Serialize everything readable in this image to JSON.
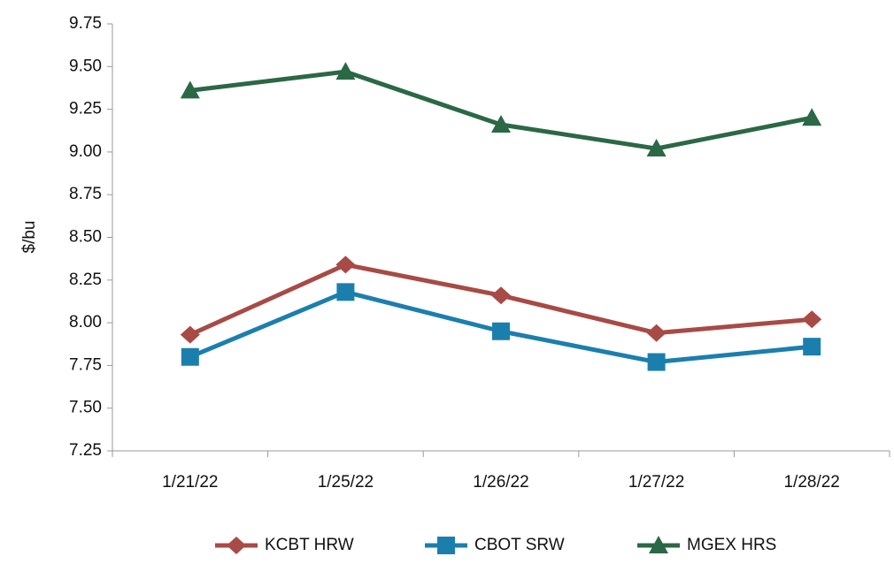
{
  "chart_data": {
    "type": "line",
    "y_label": "$/bu",
    "categories": [
      "1/21/22",
      "1/25/22",
      "1/26/22",
      "1/27/22",
      "1/28/22"
    ],
    "series": [
      {
        "name": "KCBT HRW",
        "color": "#a84a45",
        "marker": "diamond",
        "values": [
          7.93,
          8.34,
          8.16,
          7.94,
          8.02
        ]
      },
      {
        "name": "CBOT SRW",
        "color": "#1b7fae",
        "marker": "square",
        "values": [
          7.8,
          8.18,
          7.95,
          7.77,
          7.86
        ]
      },
      {
        "name": "MGEX HRS",
        "color": "#2b6845",
        "marker": "triangle",
        "values": [
          9.36,
          9.47,
          9.16,
          9.02,
          9.2
        ]
      }
    ],
    "ylim": [
      7.25,
      9.75
    ],
    "yticks": [
      7.25,
      {
        "value": 7.5,
        "label": "7.50"
      },
      7.75,
      {
        "value": 8,
        "label": "8.00"
      },
      8.25,
      {
        "value": 8.5,
        "label": "8.50"
      },
      8.75,
      {
        "value": 9,
        "label": "9.00"
      },
      9.25,
      {
        "value": 9.5,
        "label": "9.50"
      },
      9.75
    ],
    "grid": false,
    "legend": "bottom"
  }
}
